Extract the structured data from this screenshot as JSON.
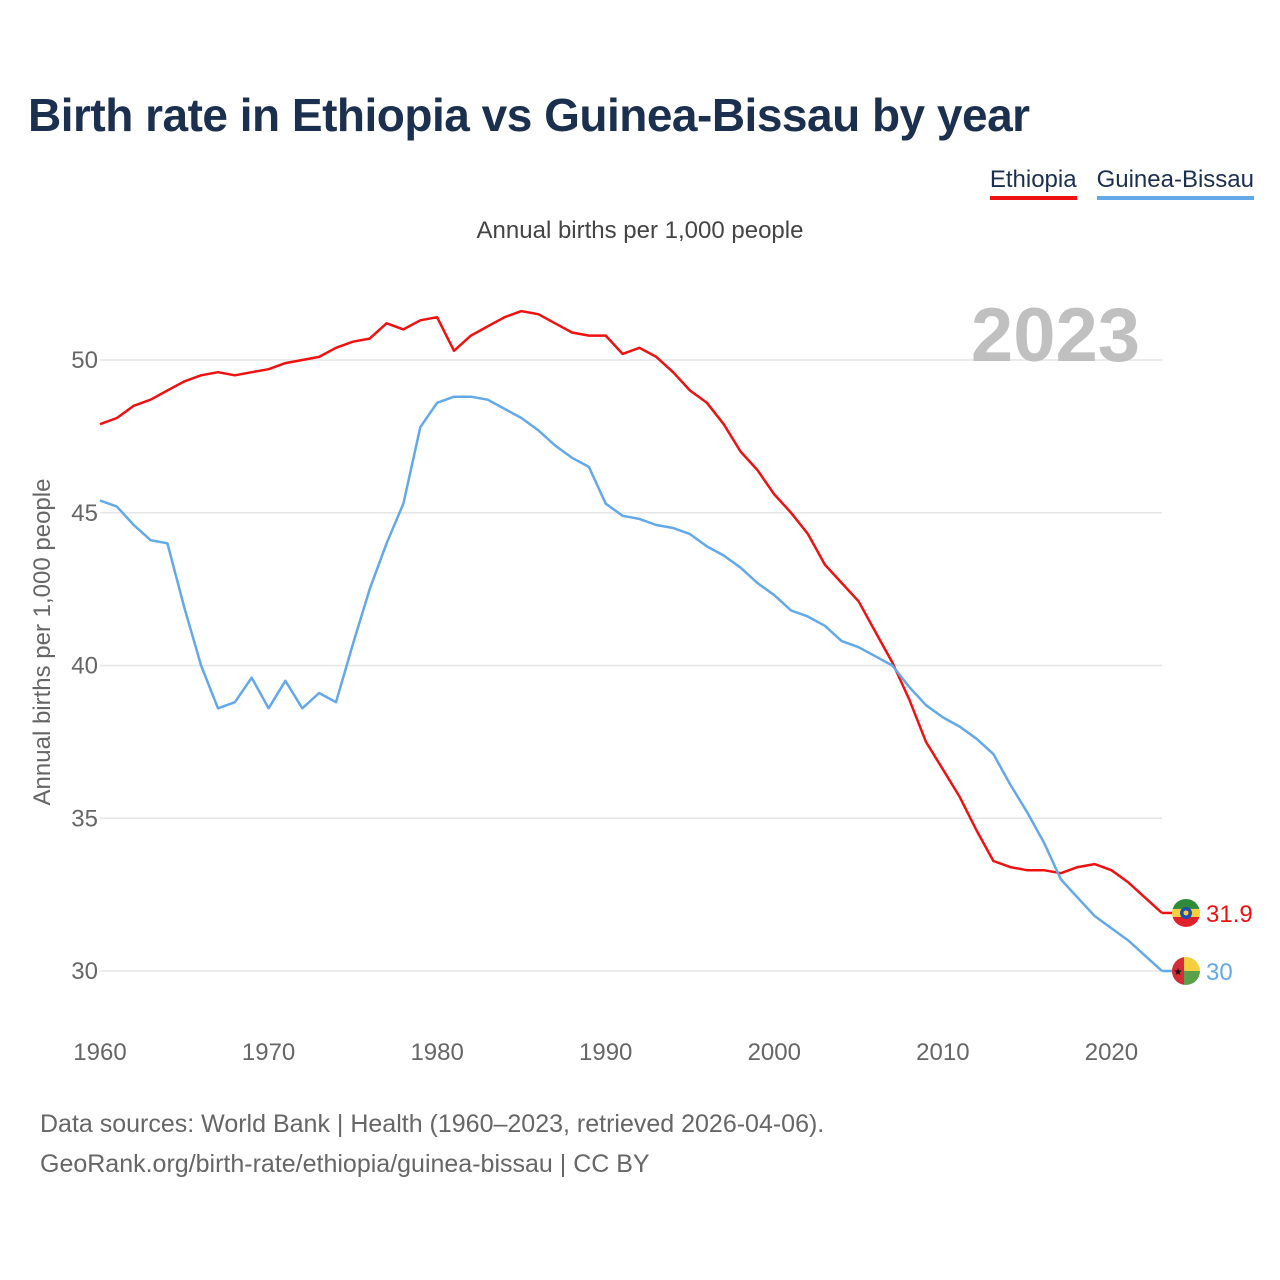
{
  "header": {
    "title": "Birth rate in Ethiopia vs Guinea-Bissau by year",
    "subtitle": "Annual births per 1,000 people"
  },
  "legend": [
    {
      "name": "Ethiopia",
      "color": "#ee1111"
    },
    {
      "name": "Guinea-Bissau",
      "color": "#63a8e8"
    }
  ],
  "footer": {
    "line1": "Data sources: World Bank | Health (1960–2023, retrieved 2026-04-06).",
    "line2": "GeoRank.org/birth-rate/ethiopia/guinea-bissau | CC BY"
  },
  "chart_data": {
    "type": "line",
    "title": "Birth rate in Ethiopia vs Guinea-Bissau by year",
    "subtitle": "Annual births per 1,000 people",
    "xlabel": "",
    "ylabel": "Annual births per 1,000 people",
    "year_label": "2023",
    "xlim": [
      1960,
      2023
    ],
    "ylim": [
      28.5,
      52.5
    ],
    "x_ticks": [
      1960,
      1970,
      1980,
      1990,
      2000,
      2010,
      2020
    ],
    "y_ticks": [
      30,
      35,
      40,
      45,
      50
    ],
    "grid": "horizontal",
    "legend_position": "top-right",
    "x": [
      1960,
      1961,
      1962,
      1963,
      1964,
      1965,
      1966,
      1967,
      1968,
      1969,
      1970,
      1971,
      1972,
      1973,
      1974,
      1975,
      1976,
      1977,
      1978,
      1979,
      1980,
      1981,
      1982,
      1983,
      1984,
      1985,
      1986,
      1987,
      1988,
      1989,
      1990,
      1991,
      1992,
      1993,
      1994,
      1995,
      1996,
      1997,
      1998,
      1999,
      2000,
      2001,
      2002,
      2003,
      2004,
      2005,
      2006,
      2007,
      2008,
      2009,
      2010,
      2011,
      2012,
      2013,
      2014,
      2015,
      2016,
      2017,
      2018,
      2019,
      2020,
      2021,
      2022,
      2023
    ],
    "series": [
      {
        "name": "Ethiopia",
        "color": "#ee1111",
        "end_label": "31.9",
        "values": [
          47.9,
          48.1,
          48.5,
          48.7,
          49.0,
          49.3,
          49.5,
          49.6,
          49.5,
          49.6,
          49.7,
          49.9,
          50.0,
          50.1,
          50.4,
          50.6,
          50.7,
          51.2,
          51.0,
          51.3,
          51.4,
          50.3,
          50.8,
          51.1,
          51.4,
          51.6,
          51.5,
          51.2,
          50.9,
          50.8,
          50.8,
          50.2,
          50.4,
          50.1,
          49.6,
          49.0,
          48.6,
          47.9,
          47.0,
          46.4,
          45.6,
          45.0,
          44.3,
          43.3,
          42.7,
          42.1,
          41.1,
          40.1,
          38.9,
          37.5,
          36.6,
          35.7,
          34.6,
          33.6,
          33.4,
          33.3,
          33.3,
          33.2,
          33.4,
          33.5,
          33.3,
          32.9,
          32.4,
          31.9
        ]
      },
      {
        "name": "Guinea-Bissau",
        "color": "#63a8e8",
        "end_label": "30",
        "values": [
          45.4,
          45.2,
          44.6,
          44.1,
          44.0,
          41.9,
          40.0,
          38.6,
          38.8,
          39.6,
          38.6,
          39.5,
          38.6,
          39.1,
          38.8,
          40.7,
          42.5,
          44.0,
          45.3,
          47.8,
          48.6,
          48.8,
          48.8,
          48.7,
          48.4,
          48.1,
          47.7,
          47.2,
          46.8,
          46.5,
          45.3,
          44.9,
          44.8,
          44.6,
          44.5,
          44.3,
          43.9,
          43.6,
          43.2,
          42.7,
          42.3,
          41.8,
          41.6,
          41.3,
          40.8,
          40.6,
          40.3,
          40.0,
          39.3,
          38.7,
          38.3,
          38.0,
          37.6,
          37.1,
          36.1,
          35.2,
          34.2,
          33.0,
          32.4,
          31.8,
          31.4,
          31.0,
          30.5,
          30.0
        ]
      }
    ]
  }
}
